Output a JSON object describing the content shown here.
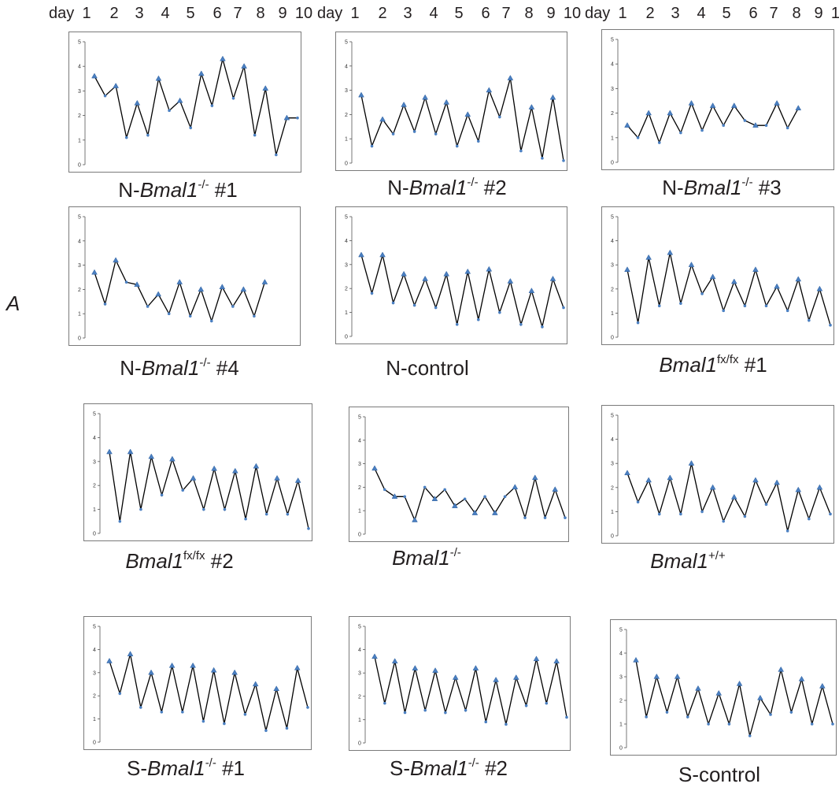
{
  "header": {
    "prefix": "day",
    "days": [
      "1",
      "2",
      "3",
      "4",
      "5",
      "6",
      "7",
      "8",
      "9",
      "10"
    ]
  },
  "section_label": "A",
  "style": {
    "line_color": "#000000",
    "marker_color": "#4a7fc1",
    "frame_color": "#7a7a7a"
  },
  "chart_data": [
    {
      "type": "line",
      "ylim": [
        0,
        5
      ],
      "yticks": [
        "0",
        "1",
        "2",
        "3",
        "4",
        "5"
      ],
      "caption": {
        "prefix": "N-",
        "gene": "Bmal1",
        "sup": "-/-",
        "suffix": " #1"
      },
      "values": [
        3.6,
        2.8,
        3.2,
        1.1,
        2.5,
        1.2,
        3.5,
        2.2,
        2.6,
        1.5,
        3.7,
        2.4,
        4.3,
        2.7,
        4.0,
        1.2,
        3.1,
        0.4,
        1.9,
        1.9
      ]
    },
    {
      "type": "line",
      "ylim": [
        0,
        5
      ],
      "yticks": [
        "0",
        "1",
        "2",
        "3",
        "4",
        "5"
      ],
      "caption": {
        "prefix": "N-",
        "gene": "Bmal1",
        "sup": "-/-",
        "suffix": " #2"
      },
      "values": [
        2.8,
        0.7,
        1.8,
        1.2,
        2.4,
        1.3,
        2.7,
        1.2,
        2.5,
        0.7,
        2.0,
        0.9,
        3.0,
        1.9,
        3.5,
        0.5,
        2.3,
        0.2,
        2.7,
        0.1
      ]
    },
    {
      "type": "line",
      "ylim": [
        0,
        5
      ],
      "yticks": [
        "0",
        "1",
        "2",
        "3",
        "4",
        "5"
      ],
      "caption": {
        "prefix": "N-",
        "gene": "Bmal1",
        "sup": "-/-",
        "suffix": " #3"
      },
      "values": [
        1.5,
        1.0,
        2.0,
        0.8,
        2.0,
        1.2,
        2.4,
        1.3,
        2.3,
        1.5,
        2.3,
        1.7,
        1.5,
        1.5,
        2.4,
        1.4,
        2.2
      ]
    },
    {
      "type": "line",
      "ylim": [
        0,
        5
      ],
      "yticks": [
        "0",
        "1",
        "2",
        "3",
        "4",
        "5"
      ],
      "caption": {
        "prefix": "N-",
        "gene": "Bmal1",
        "sup": "-/-",
        "suffix": " #4"
      },
      "values": [
        2.7,
        1.4,
        3.2,
        2.3,
        2.2,
        1.3,
        1.8,
        1.0,
        2.3,
        0.9,
        2.0,
        0.7,
        2.1,
        1.3,
        2.0,
        0.9,
        2.3
      ]
    },
    {
      "type": "line",
      "ylim": [
        0,
        5
      ],
      "yticks": [
        "0",
        "1",
        "2",
        "3",
        "4",
        "5"
      ],
      "caption": {
        "prefix": "N-control",
        "gene": "",
        "sup": "",
        "suffix": ""
      },
      "values": [
        3.4,
        1.8,
        3.4,
        1.4,
        2.6,
        1.3,
        2.4,
        1.2,
        2.6,
        0.5,
        2.7,
        0.7,
        2.8,
        1.0,
        2.3,
        0.5,
        1.9,
        0.4,
        2.4,
        1.2
      ]
    },
    {
      "type": "line",
      "ylim": [
        0,
        5
      ],
      "yticks": [
        "0",
        "1",
        "2",
        "3",
        "4",
        "5"
      ],
      "caption": {
        "prefix": "",
        "gene": "Bmal1",
        "sup": "fx/fx",
        "suffix": " #1"
      },
      "values": [
        2.8,
        0.6,
        3.3,
        1.3,
        3.5,
        1.4,
        3.0,
        1.8,
        2.5,
        1.1,
        2.3,
        1.3,
        2.8,
        1.3,
        2.1,
        1.1,
        2.4,
        0.7,
        2.0,
        0.5
      ]
    },
    {
      "type": "line",
      "ylim": [
        0,
        5
      ],
      "yticks": [
        "0",
        "1",
        "2",
        "3",
        "4",
        "5"
      ],
      "caption": {
        "prefix": "",
        "gene": "Bmal1",
        "sup": "fx/fx",
        "suffix": " #2"
      },
      "values": [
        3.4,
        0.5,
        3.4,
        1.0,
        3.2,
        1.6,
        3.1,
        1.8,
        2.3,
        1.0,
        2.7,
        1.0,
        2.6,
        0.6,
        2.8,
        0.8,
        2.3,
        0.8,
        2.2,
        0.2
      ]
    },
    {
      "type": "line",
      "ylim": [
        0,
        5
      ],
      "yticks": [
        "0",
        "1",
        "2",
        "3",
        "4",
        "5"
      ],
      "caption": {
        "prefix": "",
        "gene": "Bmal1",
        "sup": "-/-",
        "suffix": ""
      },
      "values": [
        2.8,
        1.9,
        1.6,
        1.6,
        0.6,
        2.0,
        1.5,
        1.9,
        1.2,
        1.5,
        0.9,
        1.6,
        0.9,
        1.6,
        2.0,
        0.7,
        2.4,
        0.7,
        1.9,
        0.7
      ]
    },
    {
      "type": "line",
      "ylim": [
        0,
        5
      ],
      "yticks": [
        "0",
        "1",
        "2",
        "3",
        "4",
        "5"
      ],
      "caption": {
        "prefix": "",
        "gene": "Bmal1",
        "sup": "+/+",
        "suffix": ""
      },
      "values": [
        2.6,
        1.4,
        2.3,
        0.9,
        2.4,
        0.9,
        3.0,
        1.0,
        2.0,
        0.6,
        1.6,
        0.8,
        2.3,
        1.3,
        2.2,
        0.2,
        1.9,
        0.7,
        2.0,
        0.9
      ]
    },
    {
      "type": "line",
      "ylim": [
        0,
        5
      ],
      "yticks": [
        "0",
        "1",
        "2",
        "3",
        "4",
        "5"
      ],
      "caption": {
        "prefix": "S-",
        "gene": "Bmal1",
        "sup": "-/-",
        "suffix": " #1"
      },
      "values": [
        3.5,
        2.1,
        3.8,
        1.5,
        3.0,
        1.3,
        3.3,
        1.3,
        3.3,
        0.9,
        3.1,
        0.8,
        3.0,
        1.2,
        2.5,
        0.5,
        2.3,
        0.6,
        3.2,
        1.5
      ]
    },
    {
      "type": "line",
      "ylim": [
        0,
        5
      ],
      "yticks": [
        "0",
        "1",
        "2",
        "3",
        "4",
        "5"
      ],
      "caption": {
        "prefix": "S-",
        "gene": "Bmal1",
        "sup": "-/-",
        "suffix": " #2"
      },
      "values": [
        3.7,
        1.7,
        3.5,
        1.3,
        3.2,
        1.4,
        3.1,
        1.3,
        2.8,
        1.4,
        3.2,
        0.9,
        2.7,
        0.8,
        2.8,
        1.6,
        3.6,
        1.7,
        3.5,
        1.1
      ]
    },
    {
      "type": "line",
      "ylim": [
        0,
        5
      ],
      "yticks": [
        "0",
        "1",
        "2",
        "3",
        "4",
        "5"
      ],
      "caption": {
        "prefix": "S-control",
        "gene": "",
        "sup": "",
        "suffix": ""
      },
      "values": [
        3.7,
        1.3,
        3.0,
        1.5,
        3.0,
        1.3,
        2.5,
        1.0,
        2.3,
        1.0,
        2.7,
        0.5,
        2.1,
        1.4,
        3.3,
        1.5,
        2.9,
        1.0,
        2.6,
        1.0
      ]
    }
  ]
}
